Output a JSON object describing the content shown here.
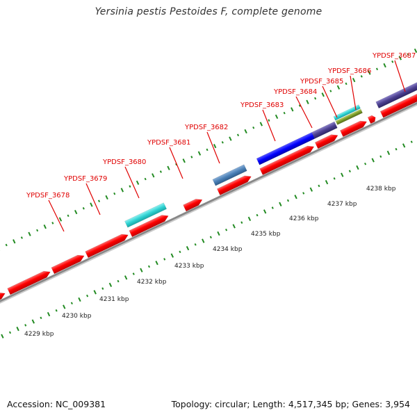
{
  "title": "Yersinia pestis Pestoides F, complete genome",
  "footer": {
    "accession": "Accession: NC_009381",
    "stats": "Topology: circular; Length: 4,517,345 bp; Genes: 3,954"
  },
  "scale": {
    "labels": [
      "4229 kbp",
      "4230 kbp",
      "4231 kbp",
      "4232 kbp",
      "4233 kbp",
      "4234 kbp",
      "4235 kbp",
      "4236 kbp",
      "4237 kbp",
      "4238 kbp"
    ]
  },
  "gene_labels": [
    {
      "name": "YPDSF_3678"
    },
    {
      "name": "YPDSF_3679"
    },
    {
      "name": "YPDSF_3680"
    },
    {
      "name": "YPDSF_3681"
    },
    {
      "name": "YPDSF_3682"
    },
    {
      "name": "YPDSF_3683"
    },
    {
      "name": "YPDSF_3684"
    },
    {
      "name": "YPDSF_3685"
    },
    {
      "name": "YPDSF_3686"
    },
    {
      "name": "YPDSF_3687"
    }
  ],
  "colors": {
    "cds": "#ff0000",
    "label": "#e00000",
    "backbone": "#888888",
    "tick": "#228b22",
    "cyan_feature": "#2ed3d3",
    "steelblue_feature": "#4a7fb5",
    "blue_feature": "#0000ff",
    "purple_feature": "#4b3f8f",
    "olive_feature": "#7a9a2a"
  }
}
